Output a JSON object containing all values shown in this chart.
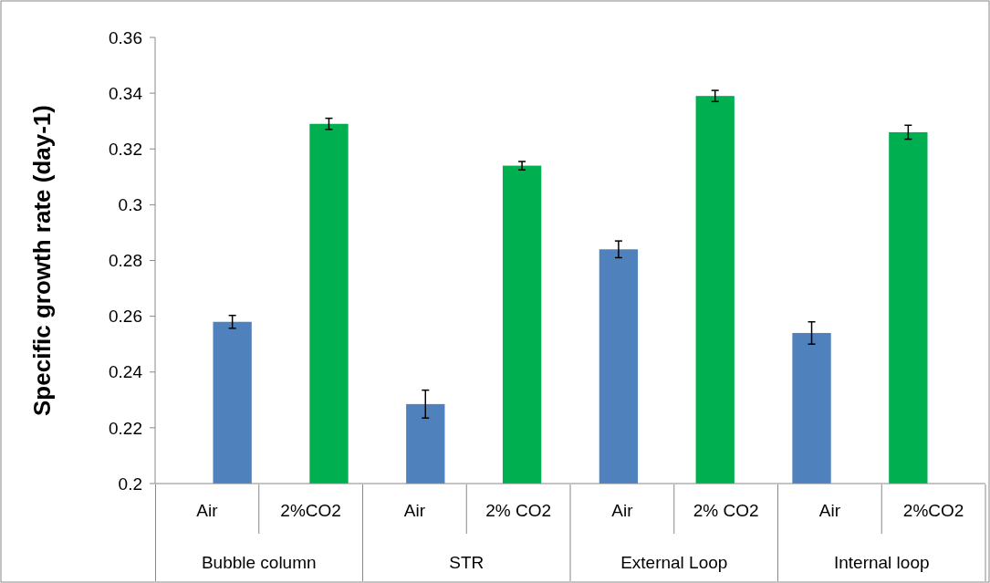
{
  "chart_data": {
    "type": "bar",
    "ylabel": "Specific growth rate (day-1)",
    "categories": [
      "Air",
      "2%CO2",
      "Air",
      "2% CO2",
      "Air",
      "2% CO2",
      "Air",
      "2%CO2"
    ],
    "values": [
      0.258,
      0.329,
      0.2285,
      0.314,
      0.284,
      0.339,
      0.254,
      0.326
    ],
    "colors": [
      "#4f81bd",
      "#00b050",
      "#4f81bd",
      "#00b050",
      "#4f81bd",
      "#00b050",
      "#4f81bd",
      "#00b050"
    ],
    "errors": [
      0.0023,
      0.002,
      0.005,
      0.0015,
      0.003,
      0.002,
      0.004,
      0.0025
    ],
    "ylim": [
      0.2,
      0.36
    ],
    "yticks": [
      0.2,
      0.22,
      0.24,
      0.26,
      0.28,
      0.3,
      0.32,
      0.34,
      0.36
    ],
    "annotations": [
      "Bubble column",
      "STR",
      "External Loop",
      "Internal loop"
    ],
    "grid": false
  }
}
